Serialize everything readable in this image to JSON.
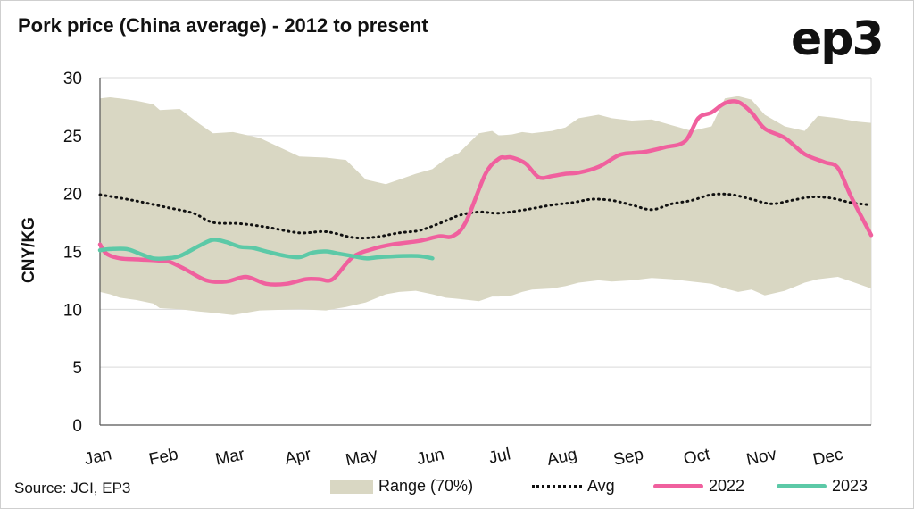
{
  "title": "Pork price (China average) - 2012 to present",
  "logo": "ep3",
  "source": "Source: JCI, EP3",
  "colors": {
    "range": "#d9d7c3",
    "avg": "#111111",
    "s2022": "#f0609e",
    "s2023": "#5cc9a7",
    "grid": "#d9d9d9"
  },
  "chart_data": {
    "type": "line",
    "ylabel": "CNY/KG",
    "xlabel": "",
    "ylim": [
      0,
      30
    ],
    "yticks": [
      0,
      5,
      10,
      15,
      20,
      25,
      30
    ],
    "categories": [
      "Jan",
      "Feb",
      "Mar",
      "Apr",
      "May",
      "Jun",
      "Jul",
      "Aug",
      "Sep",
      "Oct",
      "Nov",
      "Dec"
    ],
    "x_range": [
      0,
      11.6
    ],
    "legend_position": "bottom",
    "grid": true,
    "range_band": {
      "name": "Range (70%)",
      "x": [
        0,
        0.15,
        0.3,
        0.55,
        0.8,
        0.9,
        1.2,
        1.5,
        1.7,
        2.0,
        2.4,
        3.0,
        3.4,
        3.7,
        4.0,
        4.3,
        4.5,
        4.75,
        5.0,
        5.2,
        5.4,
        5.7,
        5.9,
        6.0,
        6.2,
        6.35,
        6.5,
        6.8,
        7.0,
        7.2,
        7.5,
        7.7,
        8.0,
        8.3,
        8.6,
        8.9,
        9.2,
        9.4,
        9.6,
        9.8,
        10.0,
        10.3,
        10.6,
        10.8,
        11.1,
        11.4,
        11.6
      ],
      "upper": [
        28.2,
        28.3,
        28.2,
        28.0,
        27.7,
        27.2,
        27.3,
        26.0,
        25.2,
        25.3,
        24.8,
        23.2,
        23.1,
        22.9,
        21.2,
        20.8,
        21.2,
        21.7,
        22.1,
        23.0,
        23.5,
        25.2,
        25.4,
        25.0,
        25.1,
        25.3,
        25.2,
        25.4,
        25.7,
        26.5,
        26.8,
        26.5,
        26.3,
        26.4,
        25.9,
        25.4,
        25.8,
        28.2,
        28.4,
        28.1,
        26.8,
        25.8,
        25.4,
        26.7,
        26.5,
        26.2,
        26.1
      ],
      "lower": [
        11.5,
        11.3,
        11.0,
        10.8,
        10.5,
        10.1,
        10.0,
        9.8,
        9.7,
        9.5,
        9.9,
        10.0,
        9.9,
        10.2,
        10.6,
        11.3,
        11.5,
        11.6,
        11.3,
        11.0,
        10.9,
        10.7,
        11.1,
        11.1,
        11.2,
        11.5,
        11.7,
        11.8,
        12.0,
        12.3,
        12.5,
        12.4,
        12.5,
        12.7,
        12.6,
        12.4,
        12.2,
        11.8,
        11.5,
        11.7,
        11.2,
        11.6,
        12.3,
        12.6,
        12.8,
        12.2,
        11.8
      ]
    },
    "series": [
      {
        "name": "Avg",
        "style": "dotted",
        "x": [
          0,
          0.5,
          1.0,
          1.4,
          1.7,
          2.1,
          2.5,
          3.0,
          3.4,
          3.8,
          4.1,
          4.5,
          4.8,
          5.1,
          5.4,
          5.7,
          6.0,
          6.4,
          6.8,
          7.1,
          7.4,
          7.7,
          8.0,
          8.3,
          8.6,
          8.9,
          9.2,
          9.5,
          9.8,
          10.1,
          10.4,
          10.7,
          11.0,
          11.3,
          11.6
        ],
        "values": [
          19.9,
          19.4,
          18.8,
          18.3,
          17.5,
          17.4,
          17.1,
          16.6,
          16.7,
          16.2,
          16.2,
          16.6,
          16.8,
          17.4,
          18.1,
          18.4,
          18.3,
          18.6,
          19.0,
          19.2,
          19.5,
          19.4,
          19.0,
          18.6,
          19.1,
          19.4,
          19.9,
          19.9,
          19.5,
          19.1,
          19.4,
          19.7,
          19.6,
          19.2,
          19.0
        ]
      },
      {
        "name": "2022",
        "x": [
          0,
          0.1,
          0.3,
          0.6,
          0.9,
          1.05,
          1.3,
          1.6,
          1.9,
          2.2,
          2.5,
          2.8,
          3.1,
          3.3,
          3.5,
          3.8,
          4.1,
          4.4,
          4.8,
          5.1,
          5.3,
          5.5,
          5.8,
          6.0,
          6.1,
          6.2,
          6.4,
          6.6,
          6.8,
          7.0,
          7.2,
          7.5,
          7.8,
          8.0,
          8.2,
          8.5,
          8.8,
          9.0,
          9.2,
          9.4,
          9.6,
          9.8,
          10.0,
          10.3,
          10.6,
          10.9,
          11.1,
          11.3,
          11.6
        ],
        "values": [
          15.6,
          14.8,
          14.4,
          14.3,
          14.2,
          14.1,
          13.4,
          12.5,
          12.4,
          12.8,
          12.2,
          12.2,
          12.6,
          12.6,
          12.6,
          14.5,
          15.2,
          15.6,
          15.9,
          16.3,
          16.3,
          17.5,
          21.7,
          23.0,
          23.1,
          23.1,
          22.6,
          21.4,
          21.5,
          21.7,
          21.8,
          22.3,
          23.3,
          23.5,
          23.6,
          24.0,
          24.5,
          26.5,
          27.0,
          27.8,
          27.9,
          27.0,
          25.6,
          24.8,
          23.4,
          22.7,
          22.2,
          19.7,
          16.4
        ]
      },
      {
        "name": "2023",
        "x": [
          0,
          0.15,
          0.4,
          0.6,
          0.8,
          1.0,
          1.2,
          1.5,
          1.7,
          1.9,
          2.1,
          2.3,
          2.5,
          2.8,
          3.0,
          3.2,
          3.4,
          3.6,
          3.8,
          4.0,
          4.2,
          4.5,
          4.8,
          5.0
        ],
        "values": [
          15.1,
          15.2,
          15.2,
          14.8,
          14.4,
          14.4,
          14.6,
          15.5,
          16.0,
          15.8,
          15.4,
          15.3,
          15.0,
          14.6,
          14.5,
          14.9,
          15.0,
          14.8,
          14.6,
          14.4,
          14.5,
          14.6,
          14.6,
          14.4
        ]
      }
    ]
  }
}
